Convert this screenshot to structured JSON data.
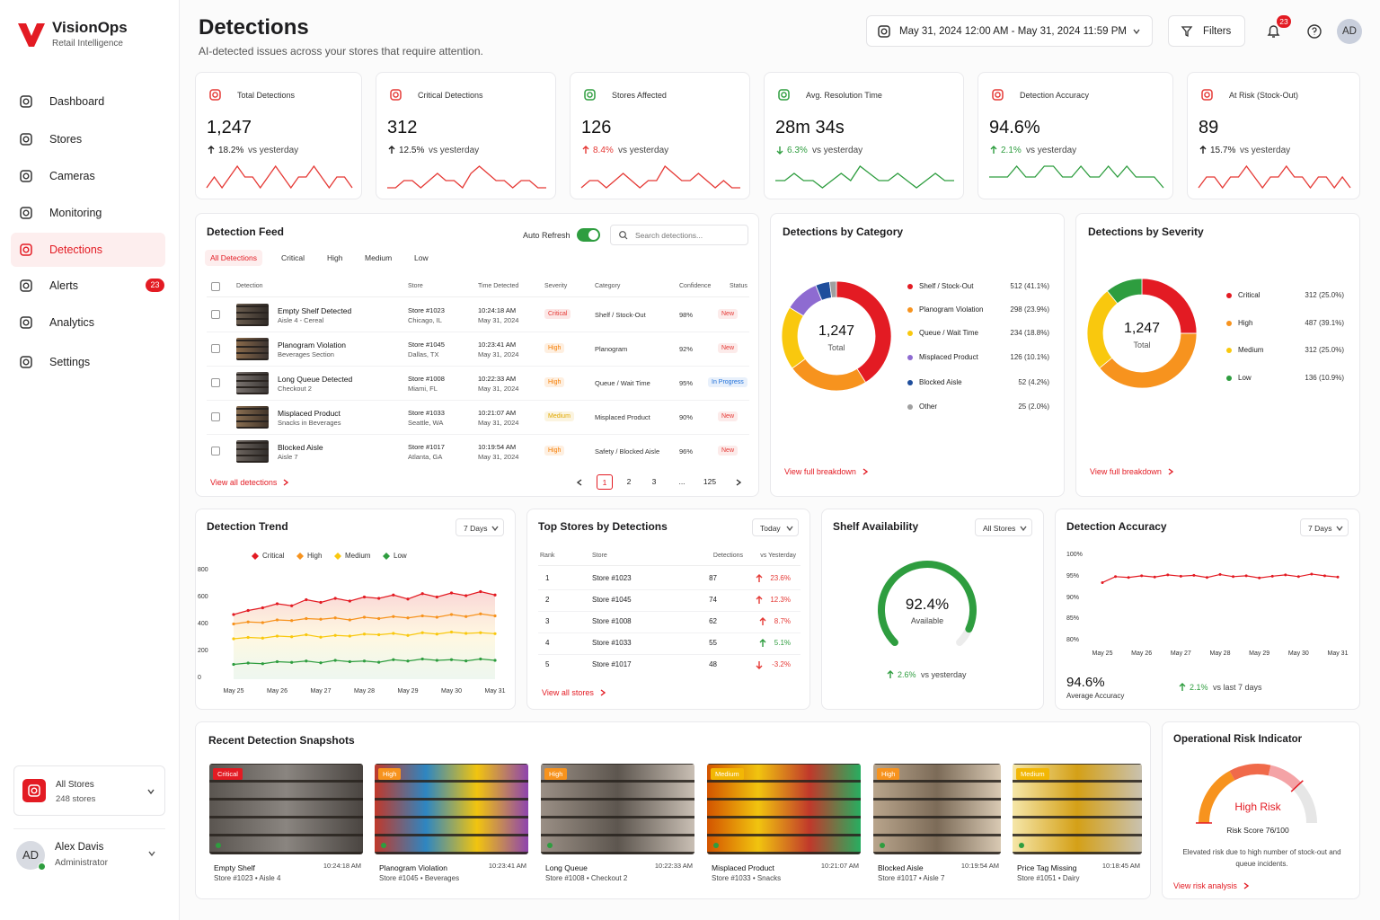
{
  "sidebar": {
    "brand": "VisionOps",
    "tagline": "Retail Intelligence",
    "nav": [
      {
        "label": "Dashboard"
      },
      {
        "label": "Stores"
      },
      {
        "label": "Cameras"
      },
      {
        "label": "Monitoring"
      },
      {
        "label": "Detections",
        "active": true
      },
      {
        "label": "Alerts",
        "badge": 23
      },
      {
        "label": "Analytics"
      },
      {
        "label": "Settings"
      }
    ],
    "store_selector": {
      "title": "All Stores",
      "subtitle": "248 stores"
    },
    "user": {
      "initials": "AD",
      "name": "Alex Davis",
      "role": "Administrator"
    }
  },
  "header": {
    "title": "Detections",
    "subtitle": "AI-detected issues across your stores that require attention.",
    "date_range": "May 31, 2024 12:00 AM - May 31, 2024 11:59 PM",
    "filters": "Filters",
    "notifications": 23,
    "avatar": "AD"
  },
  "kpis": [
    {
      "label": "Total Detections",
      "value": "1,247",
      "change": "18.2%",
      "direction": "up",
      "comparison": "vs yesterday",
      "icon_color": "#e53935",
      "change_color": "#222222",
      "line_color": "#e53935",
      "trend": [
        5,
        6,
        5,
        6,
        7,
        6,
        6,
        5,
        6,
        7,
        6,
        5,
        6,
        6,
        7,
        6,
        5,
        6,
        6,
        5
      ]
    },
    {
      "label": "Critical Detections",
      "value": "312",
      "change": "12.5%",
      "direction": "up",
      "comparison": "vs yesterday",
      "icon_color": "#e53935",
      "change_color": "#222222",
      "line_color": "#e53935",
      "trend": [
        5,
        5,
        6,
        6,
        5,
        6,
        7,
        6,
        6,
        5,
        7,
        8,
        7,
        6,
        6,
        5,
        6,
        6,
        5,
        5
      ]
    },
    {
      "label": "Stores Affected",
      "value": "126",
      "change": "8.4%",
      "direction": "up",
      "comparison": "vs yesterday",
      "icon_color": "#2e9d3f",
      "change_color": "#e53935",
      "line_color": "#e53935",
      "trend": [
        5,
        6,
        6,
        5,
        6,
        7,
        6,
        5,
        6,
        6,
        8,
        7,
        6,
        6,
        7,
        6,
        5,
        6,
        5,
        5
      ]
    },
    {
      "label": "Avg. Resolution Time",
      "value": "28m 34s",
      "change": "6.3%",
      "direction": "down",
      "comparison": "vs yesterday",
      "icon_color": "#2e9d3f",
      "change_color": "#2e9d3f",
      "line_color": "#2e9d3f",
      "trend": [
        6,
        6,
        7,
        6,
        6,
        5,
        6,
        7,
        6,
        8,
        7,
        6,
        6,
        7,
        6,
        5,
        6,
        7,
        6,
        6
      ]
    },
    {
      "label": "Detection Accuracy",
      "value": "94.6%",
      "change": "2.1%",
      "direction": "up",
      "comparison": "vs yesterday",
      "icon_color": "#e53935",
      "change_color": "#2e9d3f",
      "line_color": "#2e9d3f",
      "trend": [
        6,
        6,
        6,
        7,
        6,
        6,
        7,
        7,
        6,
        6,
        7,
        6,
        6,
        7,
        6,
        7,
        6,
        6,
        6,
        5
      ]
    },
    {
      "label": "At Risk (Stock-Out)",
      "value": "89",
      "change": "15.7%",
      "direction": "up",
      "comparison": "vs yesterday",
      "icon_color": "#e53935",
      "change_color": "#222222",
      "line_color": "#e53935",
      "trend": [
        5,
        6,
        6,
        5,
        6,
        6,
        7,
        6,
        5,
        6,
        6,
        7,
        6,
        6,
        5,
        6,
        6,
        5,
        6,
        5
      ]
    }
  ],
  "detection_feed": {
    "title": "Detection Feed",
    "auto_refresh": "Auto Refresh",
    "auto_refresh_on": true,
    "search_placeholder": "Search detections...",
    "tabs": [
      "All Detections",
      "Critical",
      "High",
      "Medium",
      "Low"
    ],
    "columns": [
      "Detection",
      "Store",
      "Time Detected",
      "Severity",
      "Category",
      "Confidence",
      "Status"
    ],
    "rows": [
      {
        "title": "Empty Shelf Detected",
        "subtitle": "Aisle 4 - Cereal",
        "store": "Store #1023",
        "location": "Chicago, IL",
        "time": "10:24:18 AM",
        "date": "May 31, 2024",
        "severity": "Critical",
        "severity_color": "#e53935",
        "category": "Shelf / Stock-Out",
        "confidence": "98%",
        "status": "New",
        "status_color": "#e53935"
      },
      {
        "title": "Planogram Violation",
        "subtitle": "Beverages Section",
        "store": "Store #1045",
        "location": "Dallas, TX",
        "time": "10:23:41 AM",
        "date": "May 31, 2024",
        "severity": "High",
        "severity_color": "#f57c00",
        "category": "Planogram",
        "confidence": "92%",
        "status": "New",
        "status_color": "#e53935"
      },
      {
        "title": "Long Queue Detected",
        "subtitle": "Checkout 2",
        "store": "Store #1008",
        "location": "Miami, FL",
        "time": "10:22:33 AM",
        "date": "May 31, 2024",
        "severity": "High",
        "severity_color": "#f57c00",
        "category": "Queue / Wait Time",
        "confidence": "95%",
        "status": "In Progress",
        "status_color": "#1e6fd9"
      },
      {
        "title": "Misplaced Product",
        "subtitle": "Snacks in Beverages",
        "store": "Store #1033",
        "location": "Seattle, WA",
        "time": "10:21:07 AM",
        "date": "May 31, 2024",
        "severity": "Medium",
        "severity_color": "#e0a800",
        "category": "Misplaced Product",
        "confidence": "90%",
        "status": "New",
        "status_color": "#e53935"
      },
      {
        "title": "Blocked Aisle",
        "subtitle": "Aisle 7",
        "store": "Store #1017",
        "location": "Atlanta, GA",
        "time": "10:19:54 AM",
        "date": "May 31, 2024",
        "severity": "High",
        "severity_color": "#f57c00",
        "category": "Safety / Blocked Aisle",
        "confidence": "96%",
        "status": "New",
        "status_color": "#e53935"
      }
    ],
    "link": "View all detections",
    "pages": [
      1,
      2,
      3,
      "...",
      125
    ]
  },
  "detections_by_category": {
    "type": "donut",
    "title": "Detections by Category",
    "center_value": "1,247",
    "center_label": "Total",
    "segments": [
      {
        "name": "Shelf / Stock-Out",
        "value": 512,
        "value_label": "512 (41.1%)",
        "color": "#e31b23"
      },
      {
        "name": "Planogram Violation",
        "value": 298,
        "value_label": "298 (23.9%)",
        "color": "#f7931e"
      },
      {
        "name": "Queue / Wait Time",
        "value": 234,
        "value_label": "234 (18.8%)",
        "color": "#f9c80e"
      },
      {
        "name": "Misplaced Product",
        "value": 126,
        "value_label": "126 (10.1%)",
        "color": "#8e6bd1"
      },
      {
        "name": "Blocked Aisle",
        "value": 52,
        "value_label": "52 (4.2%)",
        "color": "#1f4e9c"
      },
      {
        "name": "Other",
        "value": 25,
        "value_label": "25 (2.0%)",
        "color": "#a0a0a0"
      }
    ],
    "link": "View full breakdown"
  },
  "detections_by_severity": {
    "type": "donut",
    "title": "Detections by Severity",
    "center_value": "1,247",
    "center_label": "Total",
    "segments": [
      {
        "name": "Critical",
        "value": 312,
        "value_label": "312 (25.0%)",
        "color": "#e31b23"
      },
      {
        "name": "High",
        "value": 487,
        "value_label": "487 (39.1%)",
        "color": "#f7931e"
      },
      {
        "name": "Medium",
        "value": 312,
        "value_label": "312 (25.0%)",
        "color": "#f9c80e"
      },
      {
        "name": "Low",
        "value": 136,
        "value_label": "136 (10.9%)",
        "color": "#2e9d3f"
      }
    ],
    "link": "View full breakdown"
  },
  "detection_trend": {
    "type": "line",
    "title": "Detection Trend",
    "period": "7 Days",
    "categories": [
      "May 25",
      null,
      null,
      "May 26",
      null,
      null,
      "May 27",
      null,
      null,
      "May 28",
      null,
      null,
      "May 29",
      null,
      null,
      "May 30",
      null,
      null,
      "May 31"
    ],
    "ylim": [
      0,
      800
    ],
    "yticks": [
      0,
      200,
      400,
      600,
      800
    ],
    "series": [
      {
        "name": "Critical",
        "color": "#e31b23",
        "values": [
          480,
          510,
          530,
          560,
          545,
          590,
          570,
          600,
          580,
          610,
          600,
          625,
          595,
          635,
          610,
          640,
          620,
          650,
          625
        ]
      },
      {
        "name": "High",
        "color": "#f7931e",
        "values": [
          410,
          425,
          420,
          440,
          435,
          450,
          445,
          455,
          440,
          460,
          450,
          465,
          455,
          470,
          460,
          480,
          465,
          485,
          470
        ]
      },
      {
        "name": "Medium",
        "color": "#f9c80e",
        "values": [
          300,
          310,
          305,
          320,
          315,
          330,
          312,
          325,
          320,
          335,
          330,
          340,
          325,
          345,
          335,
          350,
          340,
          345,
          338
        ]
      },
      {
        "name": "Low",
        "color": "#2e9d3f",
        "values": [
          110,
          120,
          115,
          130,
          125,
          135,
          122,
          140,
          130,
          135,
          126,
          145,
          135,
          150,
          140,
          145,
          136,
          150,
          140
        ]
      }
    ]
  },
  "top_stores": {
    "title": "Top Stores by Detections",
    "period": "Today",
    "columns": [
      "Rank",
      "Store",
      "Detections",
      "vs Yesterday"
    ],
    "rows": [
      {
        "rank": 1,
        "store": "Store #1023",
        "detections": 87,
        "change": "23.6%",
        "direction": "up",
        "color": "#e53935"
      },
      {
        "rank": 2,
        "store": "Store #1045",
        "detections": 74,
        "change": "12.3%",
        "direction": "up",
        "color": "#e53935"
      },
      {
        "rank": 3,
        "store": "Store #1008",
        "detections": 62,
        "change": "8.7%",
        "direction": "up",
        "color": "#e53935"
      },
      {
        "rank": 4,
        "store": "Store #1033",
        "detections": 55,
        "change": "5.1%",
        "direction": "up",
        "color": "#2e9d3f"
      },
      {
        "rank": 5,
        "store": "Store #1017",
        "detections": 48,
        "change": "-3.2%",
        "direction": "down",
        "color": "#e53935"
      }
    ],
    "link": "View all stores"
  },
  "shelf_availability": {
    "type": "gauge",
    "title": "Shelf Availability",
    "scope": "All Stores",
    "value": 92.4,
    "value_label": "92.4%",
    "label": "Available",
    "color": "#2e9d3f",
    "change": "2.6%",
    "direction": "up",
    "comparison": "vs yesterday"
  },
  "detection_accuracy": {
    "type": "line",
    "title": "Detection Accuracy",
    "period": "7 Days",
    "categories": [
      "May 25",
      null,
      null,
      "May 26",
      null,
      null,
      "May 27",
      null,
      null,
      "May 28",
      null,
      null,
      "May 29",
      null,
      null,
      "May 30",
      null,
      null,
      "May 31"
    ],
    "ylim": [
      80,
      100
    ],
    "yticks": [
      {
        "value": 80,
        "label": "80%"
      },
      {
        "value": 85,
        "label": "85%"
      },
      {
        "value": 90,
        "label": "90%"
      },
      {
        "value": 95,
        "label": "95%"
      },
      {
        "value": 100,
        "label": "100%"
      }
    ],
    "series": [
      {
        "name": "Accuracy",
        "color": "#e31b23",
        "values": [
          93.8,
          95.2,
          95.0,
          95.4,
          95.1,
          95.6,
          95.3,
          95.5,
          95.0,
          95.7,
          95.2,
          95.4,
          94.9,
          95.3,
          95.6,
          95.2,
          95.8,
          95.4,
          95.1
        ]
      }
    ],
    "average": "94.6%",
    "average_label": "Average Accuracy",
    "change": "2.1%",
    "direction": "up",
    "comparison": "vs last 7 days"
  },
  "snapshots": {
    "title": "Recent Detection Snapshots",
    "items": [
      {
        "badge": "Critical",
        "badge_color": "#e31b23",
        "title": "Empty Shelf",
        "time": "10:24:18 AM",
        "details": "Store #1023 • Aisle 4"
      },
      {
        "badge": "High",
        "badge_color": "#f7931e",
        "title": "Planogram Violation",
        "time": "10:23:41 AM",
        "details": "Store #1045 • Beverages"
      },
      {
        "badge": "High",
        "badge_color": "#f7931e",
        "title": "Long Queue",
        "time": "10:22:33 AM",
        "details": "Store #1008 • Checkout 2"
      },
      {
        "badge": "Medium",
        "badge_color": "#f2b705",
        "title": "Misplaced Product",
        "time": "10:21:07 AM",
        "details": "Store #1033 • Snacks"
      },
      {
        "badge": "High",
        "badge_color": "#f7931e",
        "title": "Blocked Aisle",
        "time": "10:19:54 AM",
        "details": "Store #1017 • Aisle 7"
      },
      {
        "badge": "Medium",
        "badge_color": "#f2b705",
        "title": "Price Tag Missing",
        "time": "10:18:45 AM",
        "details": "Store #1051 • Dairy"
      }
    ]
  },
  "risk_indicator": {
    "type": "gauge",
    "title": "Operational Risk Indicator",
    "level": "High Risk",
    "score": 76,
    "score_label": "Risk Score 76/100",
    "description": "Elevated risk due to high number of stock-out and queue incidents.",
    "link": "View risk analysis"
  }
}
